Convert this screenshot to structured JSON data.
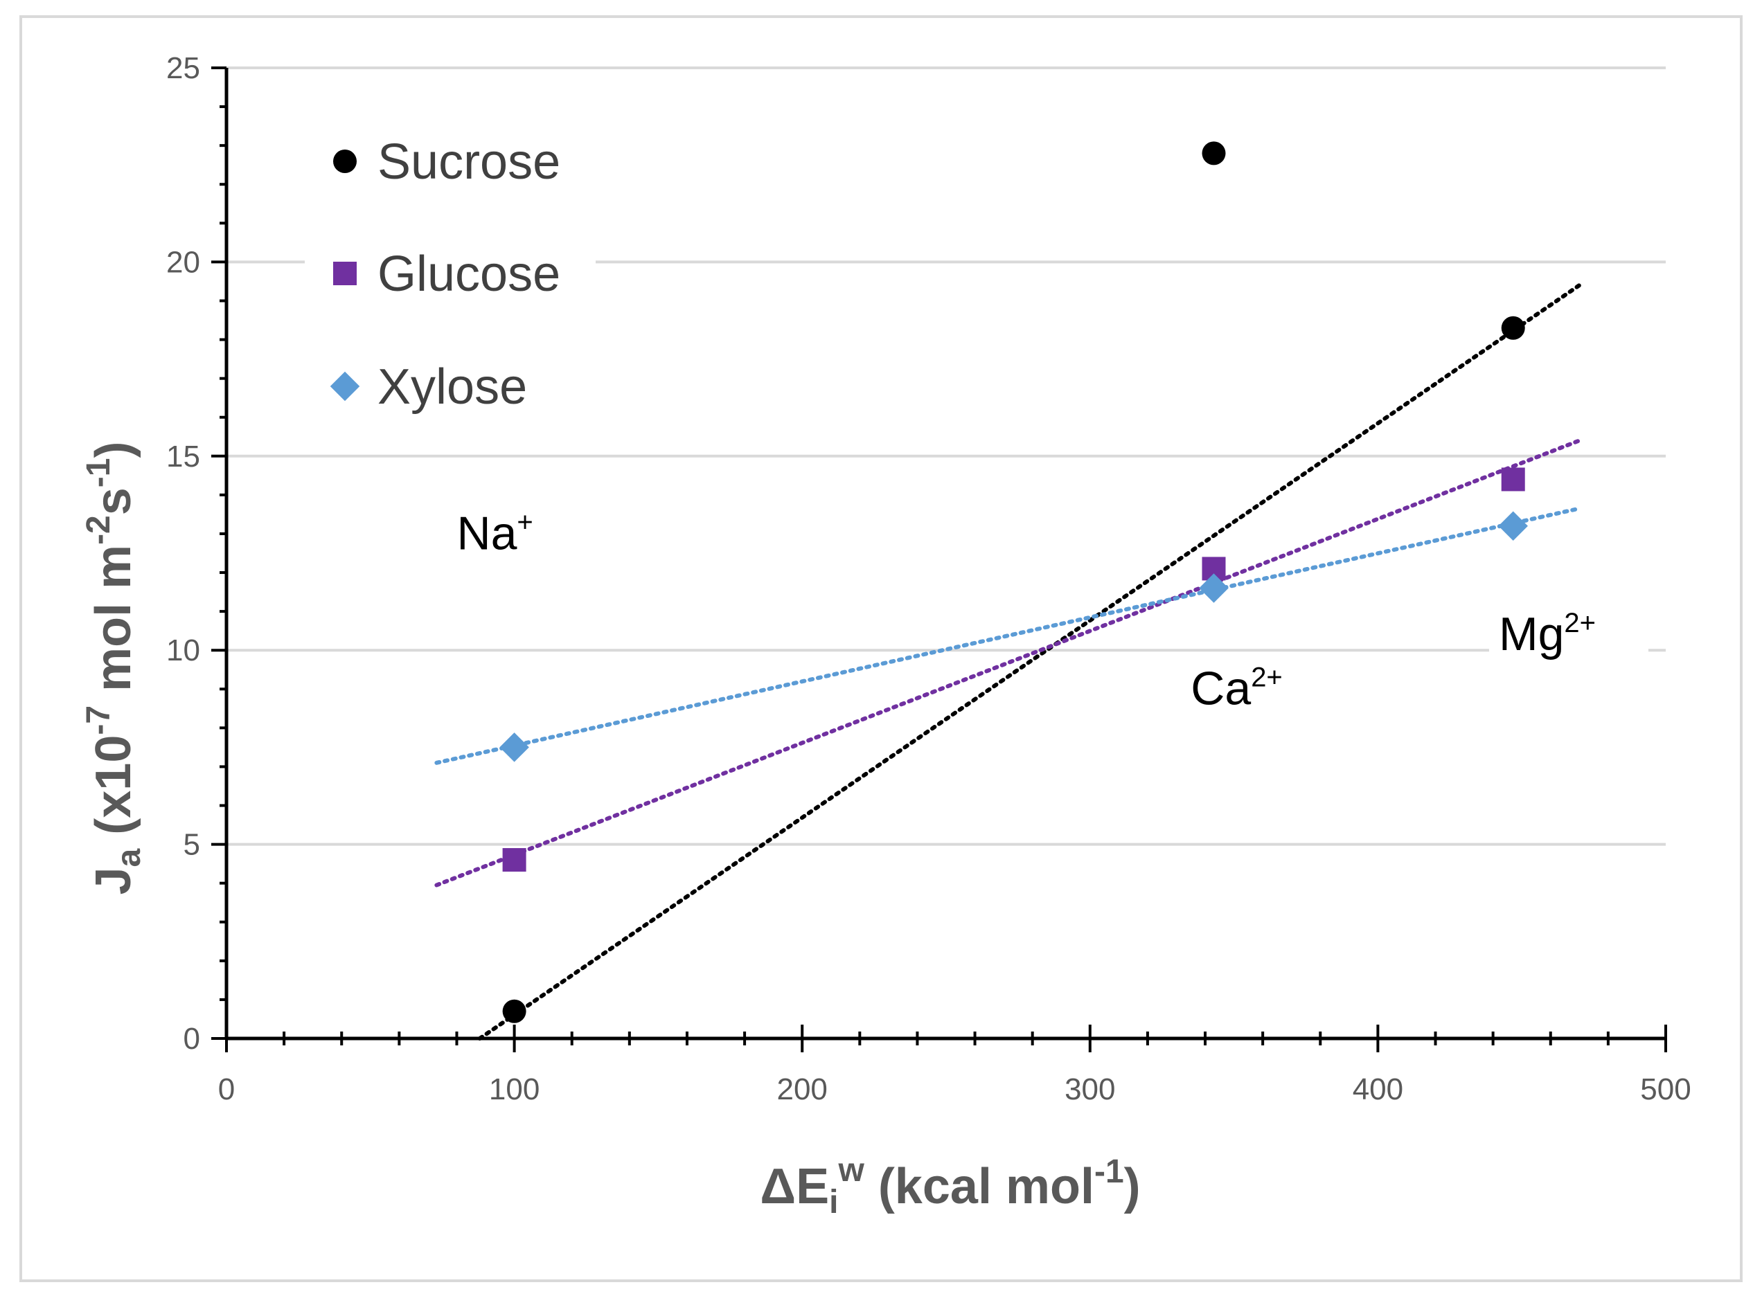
{
  "chart_data": {
    "type": "scatter",
    "title": "",
    "xlabel": {
      "main": "ΔE",
      "sub": "i",
      "sup": "w",
      "rest": " (kcal mol",
      "rest_sup": "-1",
      "close": ")"
    },
    "ylabel": {
      "main": "J",
      "sub": "a",
      "mid1": " (x10",
      "sup1": "-7",
      "mid2": " mol m",
      "sup2": "-2",
      "mid3": "s",
      "sup3": "-1",
      "close": ")"
    },
    "xlim": [
      0,
      500
    ],
    "ylim": [
      0,
      25
    ],
    "xticks": [
      0,
      100,
      200,
      300,
      400,
      500
    ],
    "yticks": [
      0,
      5,
      10,
      15,
      20,
      25
    ],
    "xtick_labels": [
      "0",
      "100",
      "200",
      "300",
      "400",
      "500"
    ],
    "ytick_labels": [
      "0",
      "5",
      "10",
      "15",
      "20",
      "25"
    ],
    "grid": "horizontal",
    "legend_position": "top-left",
    "series": [
      {
        "name": "Sucrose",
        "marker": "circle",
        "color": "#000000",
        "points": [
          [
            100,
            0.7
          ],
          [
            343,
            22.8
          ],
          [
            447,
            18.3
          ]
        ],
        "trendline": {
          "x": [
            88,
            470
          ],
          "y": [
            0.0,
            19.4
          ]
        }
      },
      {
        "name": "Glucose",
        "marker": "square",
        "color": "#7030a0",
        "points": [
          [
            100,
            4.6
          ],
          [
            343,
            12.1
          ],
          [
            447,
            14.4
          ]
        ],
        "trendline": {
          "x": [
            73,
            470
          ],
          "y": [
            3.95,
            15.4
          ]
        }
      },
      {
        "name": "Xylose",
        "marker": "diamond",
        "color": "#5b9bd5",
        "points": [
          [
            100,
            7.5
          ],
          [
            343,
            11.6
          ],
          [
            447,
            13.2
          ]
        ],
        "trendline": {
          "x": [
            73,
            470
          ],
          "y": [
            7.1,
            13.65
          ]
        }
      }
    ],
    "annotations": [
      {
        "id": "na",
        "text": "Na",
        "sup": "+",
        "x": 80,
        "y": 12.6
      },
      {
        "id": "ca",
        "text": "Ca",
        "sup": "2+",
        "x": 335,
        "y": 8.6
      },
      {
        "id": "mg",
        "text": "Mg",
        "sup": "2+",
        "x": 442,
        "y": 10.0
      }
    ]
  }
}
